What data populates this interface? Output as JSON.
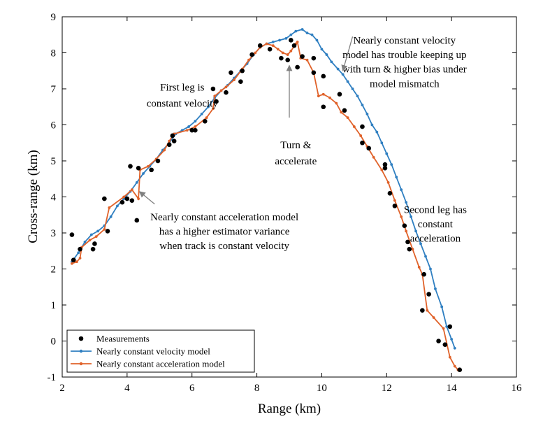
{
  "chart_data": {
    "type": "line",
    "xlabel": "Range (km)",
    "ylabel": "Cross-range (km)",
    "xlim": [
      2,
      16
    ],
    "ylim": [
      -1,
      9
    ],
    "xticks": [
      2,
      4,
      6,
      8,
      10,
      12,
      14,
      16
    ],
    "yticks": [
      -1,
      0,
      1,
      2,
      3,
      4,
      5,
      6,
      7,
      8,
      9
    ],
    "grid": false,
    "legend_position": "bottom-left",
    "colors": {
      "measurements": "#000000",
      "cv": "#2f7fc1",
      "ca": "#e0622a"
    },
    "series": [
      {
        "name": "Measurements",
        "kind": "scatter",
        "points": [
          [
            2.3,
            2.95
          ],
          [
            2.35,
            2.25
          ],
          [
            2.55,
            2.55
          ],
          [
            2.95,
            2.55
          ],
          [
            3.0,
            2.7
          ],
          [
            3.3,
            3.95
          ],
          [
            3.4,
            3.05
          ],
          [
            3.85,
            3.85
          ],
          [
            4.0,
            3.95
          ],
          [
            4.1,
            4.85
          ],
          [
            4.15,
            3.9
          ],
          [
            4.3,
            3.35
          ],
          [
            4.35,
            4.8
          ],
          [
            4.75,
            4.75
          ],
          [
            4.95,
            5.0
          ],
          [
            5.3,
            5.45
          ],
          [
            5.4,
            5.7
          ],
          [
            5.45,
            5.55
          ],
          [
            6.0,
            5.85
          ],
          [
            6.1,
            5.85
          ],
          [
            6.4,
            6.1
          ],
          [
            6.65,
            7.0
          ],
          [
            6.75,
            6.65
          ],
          [
            7.05,
            6.9
          ],
          [
            7.2,
            7.45
          ],
          [
            7.5,
            7.2
          ],
          [
            7.55,
            7.5
          ],
          [
            7.85,
            7.95
          ],
          [
            8.1,
            8.2
          ],
          [
            8.4,
            8.1
          ],
          [
            8.75,
            7.85
          ],
          [
            8.95,
            7.8
          ],
          [
            9.05,
            8.35
          ],
          [
            9.15,
            8.2
          ],
          [
            9.25,
            7.6
          ],
          [
            9.4,
            7.9
          ],
          [
            9.75,
            7.45
          ],
          [
            9.75,
            7.85
          ],
          [
            10.05,
            7.35
          ],
          [
            10.05,
            6.5
          ],
          [
            10.55,
            6.85
          ],
          [
            10.7,
            6.4
          ],
          [
            11.25,
            5.95
          ],
          [
            11.25,
            5.5
          ],
          [
            11.45,
            5.35
          ],
          [
            11.95,
            4.8
          ],
          [
            11.95,
            4.9
          ],
          [
            12.1,
            4.1
          ],
          [
            12.25,
            3.75
          ],
          [
            12.55,
            3.2
          ],
          [
            12.65,
            2.75
          ],
          [
            12.7,
            2.55
          ],
          [
            13.1,
            0.85
          ],
          [
            13.15,
            1.85
          ],
          [
            13.3,
            1.3
          ],
          [
            13.6,
            0.0
          ],
          [
            13.8,
            -0.1
          ],
          [
            13.95,
            0.4
          ],
          [
            14.25,
            -0.8
          ]
        ]
      },
      {
        "name": "Nearly constant velocity model",
        "kind": "line",
        "points": [
          [
            2.3,
            2.2
          ],
          [
            2.5,
            2.45
          ],
          [
            2.7,
            2.75
          ],
          [
            2.9,
            2.95
          ],
          [
            3.1,
            3.05
          ],
          [
            3.3,
            3.2
          ],
          [
            3.5,
            3.45
          ],
          [
            3.7,
            3.75
          ],
          [
            3.9,
            3.95
          ],
          [
            4.1,
            4.15
          ],
          [
            4.3,
            4.4
          ],
          [
            4.5,
            4.65
          ],
          [
            4.7,
            4.85
          ],
          [
            4.9,
            5.05
          ],
          [
            5.1,
            5.3
          ],
          [
            5.3,
            5.5
          ],
          [
            5.5,
            5.75
          ],
          [
            5.7,
            5.85
          ],
          [
            5.9,
            5.95
          ],
          [
            6.1,
            6.1
          ],
          [
            6.3,
            6.3
          ],
          [
            6.5,
            6.5
          ],
          [
            6.7,
            6.75
          ],
          [
            6.9,
            6.95
          ],
          [
            7.1,
            7.1
          ],
          [
            7.3,
            7.3
          ],
          [
            7.5,
            7.5
          ],
          [
            7.7,
            7.7
          ],
          [
            7.9,
            7.95
          ],
          [
            8.1,
            8.15
          ],
          [
            8.3,
            8.25
          ],
          [
            8.5,
            8.3
          ],
          [
            8.7,
            8.35
          ],
          [
            8.9,
            8.4
          ],
          [
            9.05,
            8.5
          ],
          [
            9.2,
            8.6
          ],
          [
            9.4,
            8.65
          ],
          [
            9.55,
            8.55
          ],
          [
            9.7,
            8.5
          ],
          [
            9.85,
            8.35
          ],
          [
            10.0,
            8.1
          ],
          [
            10.15,
            7.95
          ],
          [
            10.3,
            7.75
          ],
          [
            10.5,
            7.55
          ],
          [
            10.65,
            7.4
          ],
          [
            10.8,
            7.2
          ],
          [
            10.95,
            7.0
          ],
          [
            11.1,
            6.8
          ],
          [
            11.25,
            6.55
          ],
          [
            11.4,
            6.3
          ],
          [
            11.55,
            6.0
          ],
          [
            11.7,
            5.8
          ],
          [
            11.85,
            5.5
          ],
          [
            12.0,
            5.2
          ],
          [
            12.15,
            4.9
          ],
          [
            12.3,
            4.55
          ],
          [
            12.45,
            4.2
          ],
          [
            12.6,
            3.85
          ],
          [
            12.75,
            3.45
          ],
          [
            12.9,
            3.05
          ],
          [
            13.05,
            2.7
          ],
          [
            13.2,
            2.35
          ],
          [
            13.35,
            2.0
          ],
          [
            13.5,
            1.45
          ],
          [
            13.7,
            0.95
          ],
          [
            13.85,
            0.4
          ],
          [
            14.0,
            0.05
          ],
          [
            14.1,
            -0.2
          ]
        ]
      },
      {
        "name": "Nearly constant acceleration model",
        "kind": "line",
        "points": [
          [
            2.3,
            2.15
          ],
          [
            2.45,
            2.2
          ],
          [
            2.55,
            2.3
          ],
          [
            2.6,
            2.6
          ],
          [
            2.85,
            2.8
          ],
          [
            3.05,
            2.9
          ],
          [
            3.3,
            3.1
          ],
          [
            3.45,
            3.7
          ],
          [
            3.9,
            4.0
          ],
          [
            4.15,
            4.2
          ],
          [
            4.35,
            3.95
          ],
          [
            4.4,
            4.75
          ],
          [
            4.65,
            4.85
          ],
          [
            4.9,
            5.05
          ],
          [
            5.15,
            5.3
          ],
          [
            5.3,
            5.55
          ],
          [
            5.45,
            5.75
          ],
          [
            5.85,
            5.85
          ],
          [
            6.1,
            5.95
          ],
          [
            6.45,
            6.2
          ],
          [
            6.65,
            6.45
          ],
          [
            6.7,
            6.8
          ],
          [
            6.9,
            6.95
          ],
          [
            7.05,
            7.05
          ],
          [
            7.3,
            7.25
          ],
          [
            7.55,
            7.55
          ],
          [
            7.75,
            7.8
          ],
          [
            7.95,
            8.0
          ],
          [
            8.1,
            8.15
          ],
          [
            8.3,
            8.25
          ],
          [
            8.5,
            8.2
          ],
          [
            8.65,
            8.1
          ],
          [
            8.8,
            8.0
          ],
          [
            8.95,
            7.95
          ],
          [
            9.05,
            8.05
          ],
          [
            9.2,
            8.25
          ],
          [
            9.25,
            8.3
          ],
          [
            9.35,
            7.85
          ],
          [
            9.55,
            7.8
          ],
          [
            9.75,
            7.45
          ],
          [
            9.9,
            6.8
          ],
          [
            10.05,
            6.85
          ],
          [
            10.25,
            6.75
          ],
          [
            10.45,
            6.6
          ],
          [
            10.6,
            6.35
          ],
          [
            10.8,
            6.2
          ],
          [
            11.0,
            5.95
          ],
          [
            11.2,
            5.7
          ],
          [
            11.4,
            5.4
          ],
          [
            11.6,
            5.1
          ],
          [
            11.85,
            4.75
          ],
          [
            12.05,
            4.4
          ],
          [
            12.25,
            3.9
          ],
          [
            12.45,
            3.45
          ],
          [
            12.6,
            3.05
          ],
          [
            12.8,
            2.55
          ],
          [
            13.0,
            2.05
          ],
          [
            13.1,
            1.85
          ],
          [
            13.25,
            0.85
          ],
          [
            13.45,
            0.65
          ],
          [
            13.75,
            0.35
          ],
          [
            13.95,
            -0.45
          ],
          [
            14.1,
            -0.7
          ],
          [
            14.2,
            -0.8
          ]
        ]
      }
    ],
    "annotations": [
      {
        "lines": [
          "First leg is",
          "constant velocity"
        ],
        "x": 5.7,
        "y": [
          7.05,
          6.6
        ]
      },
      {
        "lines": [
          "Turn &",
          "accelerate"
        ],
        "x": 9.2,
        "y": [
          5.45,
          5.0
        ]
      },
      {
        "lines": [
          "Nearly constant velocity",
          "model has trouble keeping up",
          "with turn & higher bias under",
          "model mismatch"
        ],
        "x": 12.55,
        "y": [
          8.35,
          7.95,
          7.55,
          7.15
        ]
      },
      {
        "lines": [
          "Nearly constant acceleration model",
          "has a higher estimator variance",
          "when track is constant velocity"
        ],
        "x": 7.0,
        "y": [
          3.45,
          3.05,
          2.65
        ]
      },
      {
        "lines": [
          "Second leg has",
          "constant",
          "acceleration"
        ],
        "x": 13.5,
        "y": [
          3.65,
          3.25,
          2.85
        ]
      }
    ],
    "arrows": [
      {
        "from": [
          9.0,
          6.2
        ],
        "to": [
          9.0,
          7.65
        ]
      },
      {
        "from": [
          10.95,
          8.45
        ],
        "to": [
          10.65,
          7.5
        ]
      },
      {
        "from": [
          4.85,
          3.8
        ],
        "to": [
          4.38,
          4.15
        ]
      }
    ]
  }
}
